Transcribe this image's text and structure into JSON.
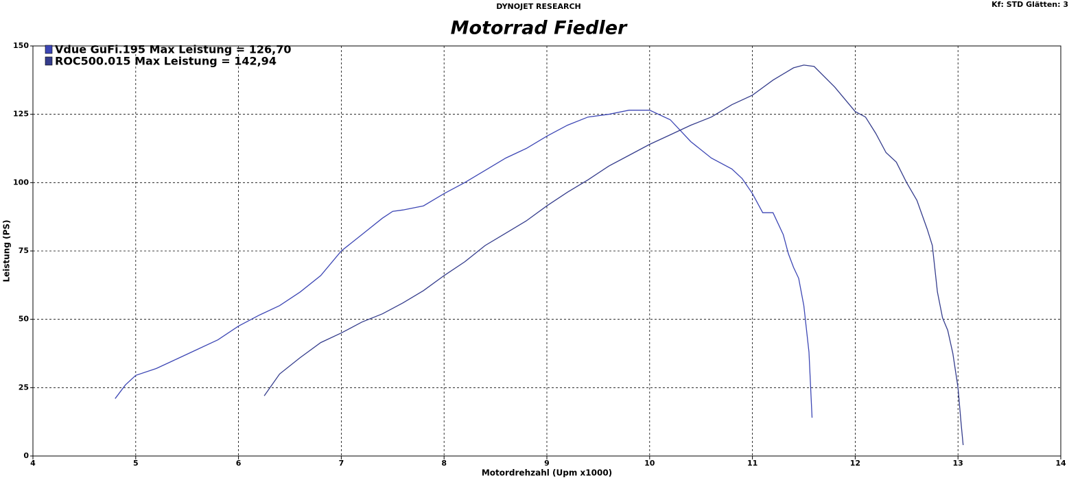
{
  "chart_data": {
    "type": "line",
    "header": "DYNOJET RESEARCH",
    "settings_text": "Kf: STD  Glätten: 3",
    "title": "Motorrad Fiedler",
    "x_label": "Motordrehzahl (Upm x1000)",
    "y_label": "Leistung (PS)",
    "xlim": [
      4,
      14
    ],
    "ylim": [
      0,
      150
    ],
    "xticks": [
      4,
      5,
      6,
      7,
      8,
      9,
      10,
      11,
      12,
      13,
      14
    ],
    "yticks": [
      0,
      25,
      50,
      75,
      100,
      125,
      150
    ],
    "grid": true,
    "legend": "upper left",
    "series": [
      {
        "name": "Vdue GuFi.195 Max Leistung = 126,70",
        "color": "#3c46b4",
        "x": [
          4.8,
          4.9,
          5.0,
          5.2,
          5.4,
          5.6,
          5.8,
          6.0,
          6.2,
          6.4,
          6.6,
          6.8,
          7.0,
          7.2,
          7.4,
          7.5,
          7.6,
          7.8,
          8.0,
          8.2,
          8.4,
          8.6,
          8.8,
          9.0,
          9.2,
          9.4,
          9.6,
          9.8,
          10.0,
          10.2,
          10.4,
          10.6,
          10.8,
          10.9,
          11.0,
          11.1,
          11.2,
          11.3,
          11.35,
          11.4,
          11.45,
          11.5,
          11.55,
          11.58
        ],
        "values": [
          21,
          26,
          29.5,
          32,
          35.5,
          39,
          42.5,
          47.5,
          51.5,
          55,
          60,
          66,
          75,
          81,
          87,
          89.5,
          90,
          91.5,
          96,
          100,
          104.5,
          109,
          112.5,
          117,
          121,
          124,
          125,
          126.5,
          126.5,
          123,
          115,
          109,
          105,
          101.5,
          96,
          89,
          89,
          81,
          74,
          69,
          65,
          55,
          38,
          14
        ]
      },
      {
        "name": "ROC500.015 Max Leistung = 142,94",
        "color": "#343c8c",
        "x": [
          6.25,
          6.4,
          6.6,
          6.8,
          7.0,
          7.2,
          7.4,
          7.6,
          7.8,
          8.0,
          8.2,
          8.4,
          8.6,
          8.8,
          9.0,
          9.2,
          9.4,
          9.6,
          9.8,
          10.0,
          10.2,
          10.4,
          10.6,
          10.8,
          11.0,
          11.2,
          11.4,
          11.5,
          11.6,
          11.8,
          12.0,
          12.1,
          12.2,
          12.3,
          12.4,
          12.5,
          12.6,
          12.7,
          12.75,
          12.8,
          12.85,
          12.9,
          12.95,
          13.0,
          13.03,
          13.05
        ],
        "values": [
          22,
          30,
          36,
          41.5,
          45,
          49,
          52,
          56,
          60.5,
          66,
          71,
          77,
          81.5,
          86,
          91.5,
          96.5,
          101,
          106,
          110,
          114,
          117.5,
          121,
          124,
          128.5,
          132,
          137.5,
          142,
          143,
          142.5,
          135,
          126,
          124,
          118,
          111,
          107.5,
          100,
          93.5,
          83,
          77,
          60,
          50.5,
          46,
          37.5,
          25,
          12,
          4
        ]
      }
    ]
  }
}
